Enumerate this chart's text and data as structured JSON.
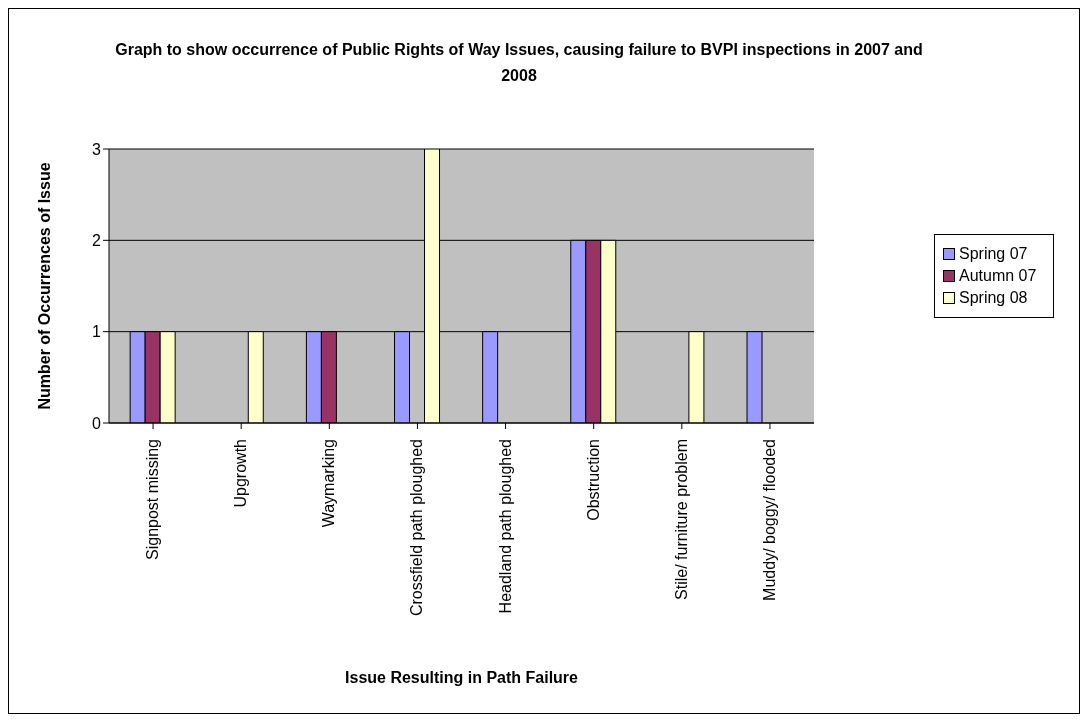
{
  "chart_data": {
    "type": "bar",
    "title": "Graph to show occurrence of Public Rights of Way Issues, causing failure to BVPI inspections in 2007 and 2008",
    "xlabel": "Issue Resulting in Path Failure",
    "ylabel": "Number of Occurrences of Issue",
    "categories": [
      "Signpost missing",
      "Upgrowth",
      "Waymarking",
      "Crossfield path ploughed",
      "Headland path ploughed",
      "Obstruction",
      "Stile/ furniture problem",
      "Muddy/ boggy/ flooded"
    ],
    "series": [
      {
        "name": "Spring 07",
        "color": "#9999ff",
        "values": [
          1,
          0,
          1,
          1,
          1,
          2,
          0,
          1
        ]
      },
      {
        "name": "Autumn 07",
        "color": "#993366",
        "values": [
          1,
          0,
          1,
          0,
          0,
          2,
          0,
          0
        ]
      },
      {
        "name": "Spring 08",
        "color": "#ffffcc",
        "values": [
          1,
          1,
          0,
          3,
          0,
          2,
          1,
          0
        ]
      }
    ],
    "ylim": [
      0,
      3
    ],
    "yticks": [
      0,
      1,
      2,
      3
    ],
    "grid": "y",
    "legend": "right"
  }
}
